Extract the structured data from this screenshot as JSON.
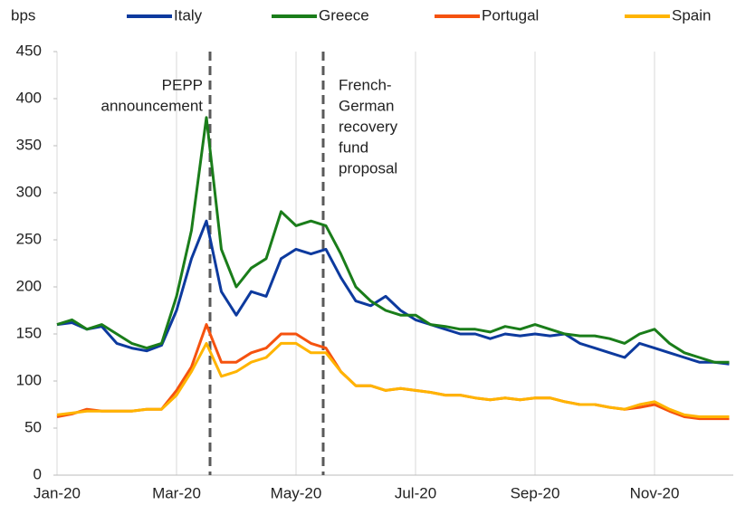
{
  "chart_data": {
    "type": "line",
    "y_label": "bps",
    "categories": [
      "Jan-20",
      null,
      null,
      null,
      null,
      null,
      null,
      null,
      "Mar-20",
      null,
      null,
      null,
      null,
      null,
      null,
      null,
      "May-20",
      null,
      null,
      null,
      null,
      null,
      null,
      null,
      "Jul-20",
      null,
      null,
      null,
      null,
      null,
      null,
      null,
      "Sep-20",
      null,
      null,
      null,
      null,
      null,
      null,
      null,
      "Nov-20",
      null,
      null,
      null,
      null,
      null
    ],
    "series": [
      {
        "name": "Italy",
        "color": "#0d3a9e",
        "values": [
          160,
          162,
          155,
          158,
          140,
          135,
          132,
          138,
          175,
          230,
          270,
          195,
          170,
          195,
          190,
          230,
          240,
          235,
          240,
          210,
          185,
          180,
          190,
          175,
          165,
          160,
          155,
          150,
          150,
          145,
          150,
          148,
          150,
          148,
          150,
          140,
          135,
          130,
          125,
          140,
          135,
          130,
          125,
          120,
          120,
          118
        ]
      },
      {
        "name": "Greece",
        "color": "#1a7d1a",
        "values": [
          160,
          165,
          155,
          160,
          150,
          140,
          135,
          140,
          190,
          260,
          380,
          240,
          200,
          220,
          230,
          280,
          265,
          270,
          265,
          235,
          200,
          185,
          175,
          170,
          170,
          160,
          158,
          155,
          155,
          152,
          158,
          155,
          160,
          155,
          150,
          148,
          148,
          145,
          140,
          150,
          155,
          140,
          130,
          125,
          120,
          120
        ]
      },
      {
        "name": "Portugal",
        "color": "#f5520f",
        "values": [
          62,
          65,
          70,
          68,
          68,
          68,
          70,
          70,
          90,
          115,
          160,
          120,
          120,
          130,
          135,
          150,
          150,
          140,
          135,
          110,
          95,
          95,
          90,
          92,
          90,
          88,
          85,
          85,
          82,
          80,
          82,
          80,
          82,
          82,
          78,
          75,
          75,
          72,
          70,
          72,
          75,
          68,
          62,
          60,
          60,
          60
        ]
      },
      {
        "name": "Spain",
        "color": "#ffb400",
        "values": [
          64,
          66,
          68,
          68,
          68,
          68,
          70,
          70,
          85,
          110,
          140,
          105,
          110,
          120,
          125,
          140,
          140,
          130,
          130,
          110,
          95,
          95,
          90,
          92,
          90,
          88,
          85,
          85,
          82,
          80,
          82,
          80,
          82,
          82,
          78,
          75,
          75,
          72,
          70,
          75,
          78,
          70,
          64,
          62,
          62,
          62
        ]
      }
    ],
    "ylim": [
      0,
      450
    ],
    "yticks": [
      0,
      50,
      100,
      150,
      200,
      250,
      300,
      350,
      400,
      450
    ],
    "annotations": [
      {
        "lines": [
          "PEPP",
          "announcement"
        ]
      },
      {
        "lines": [
          "French-",
          "German",
          "recovery",
          "fund",
          "proposal"
        ]
      }
    ]
  }
}
